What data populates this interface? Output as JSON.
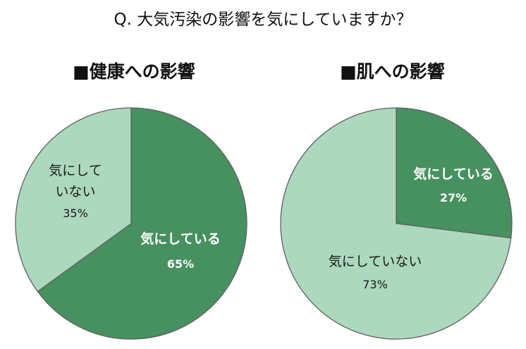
{
  "question": "Q. 大気汚染の影響を気にしていますか？",
  "colors": {
    "dark": "#46915f",
    "light": "#acd8bd",
    "outline": "#606060"
  },
  "chart_data": [
    {
      "type": "pie",
      "title": "■健康への影響",
      "slices": [
        {
          "label": "気にしている",
          "percent_label": "65%",
          "value": 65,
          "color": "dark"
        },
        {
          "label": "気にして\nいない",
          "percent_label": "35%",
          "value": 35,
          "color": "light"
        }
      ]
    },
    {
      "type": "pie",
      "title": "■肌への影響",
      "slices": [
        {
          "label": "気にしている",
          "percent_label": "27%",
          "value": 27,
          "color": "dark"
        },
        {
          "label": "気にしていない",
          "percent_label": "73%",
          "value": 73,
          "color": "light"
        }
      ]
    }
  ]
}
